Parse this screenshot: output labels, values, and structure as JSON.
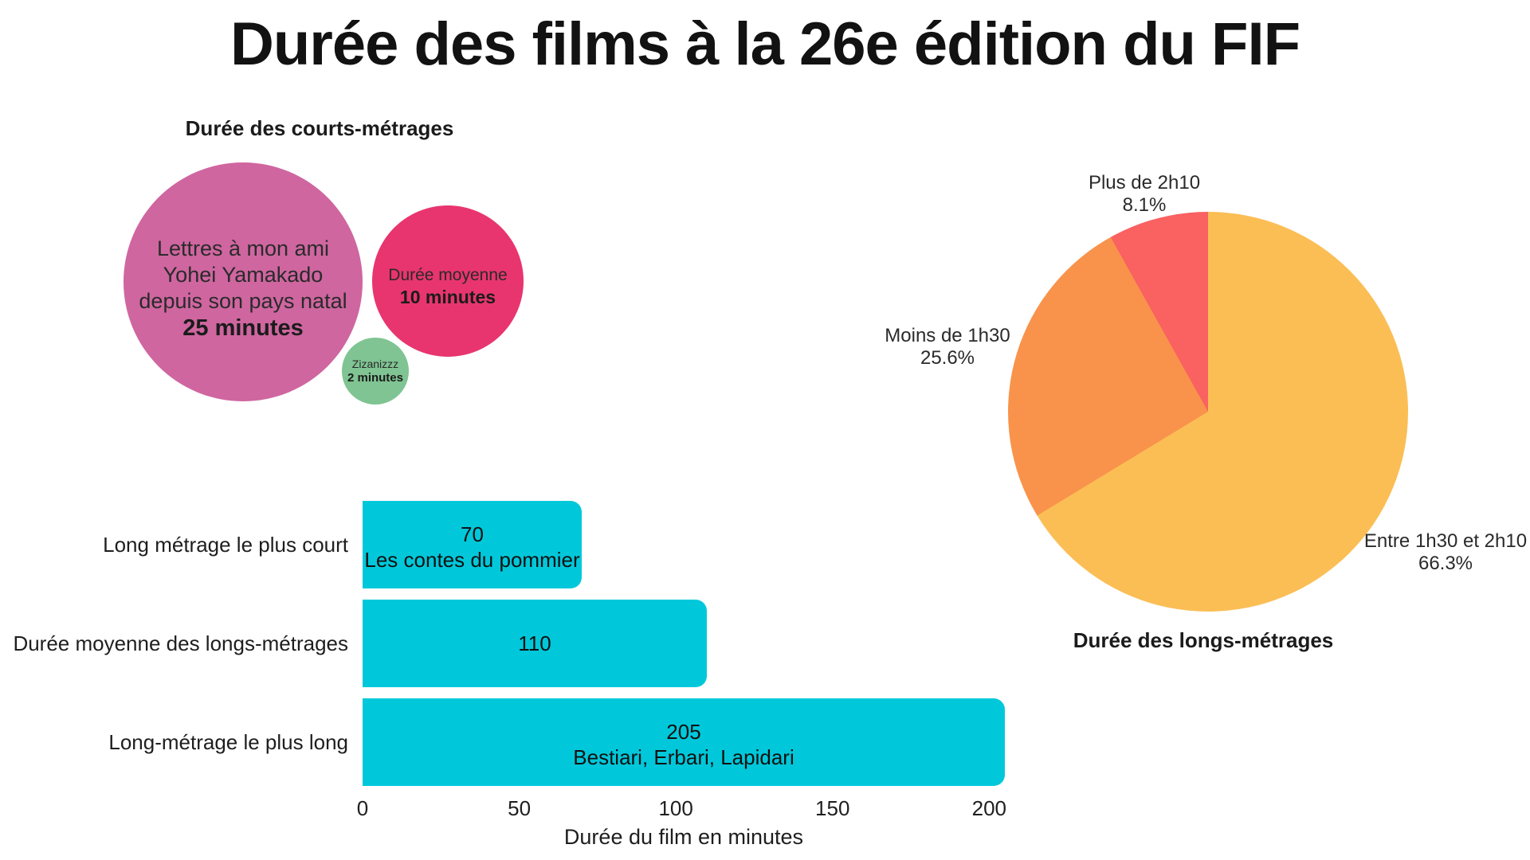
{
  "title": "Durée des films à la 26e édition du FIF",
  "colors": {
    "bubble_large": "#cf66a0",
    "bubble_medium": "#e8356f",
    "bubble_small": "#7fc492",
    "bar": "#00c8da",
    "pie_yellow": "#fbbe55",
    "pie_orange": "#f9934b",
    "pie_red": "#fa6161"
  },
  "chart_data": [
    {
      "id": "short-films-bubbles",
      "type": "bubble",
      "title": "Durée des courts-métrages",
      "unit": "minutes",
      "points": [
        {
          "label_lines": [
            "Lettres à mon ami",
            "Yohei Yamakado",
            "depuis son pays natal"
          ],
          "value_minutes": 25,
          "value_label": "25 minutes",
          "color": "#cf66a0"
        },
        {
          "label_lines": [
            "Durée moyenne"
          ],
          "value_minutes": 10,
          "value_label": "10 minutes",
          "color": "#e8356f"
        },
        {
          "label_lines": [
            "Zizanizzz"
          ],
          "value_minutes": 2,
          "value_label": "2 minutes",
          "color": "#7fc492"
        }
      ]
    },
    {
      "id": "feature-films-pie",
      "type": "pie",
      "title": "Durée des longs-métrages",
      "start_angle_deg": 0,
      "direction": "clockwise",
      "slices": [
        {
          "label": "Entre 1h30 et 2h10",
          "value_pct": 66.3,
          "pct_label": "66.3%",
          "color": "#fbbe55"
        },
        {
          "label": "Moins de 1h30",
          "value_pct": 25.6,
          "pct_label": "25.6%",
          "color": "#f9934b"
        },
        {
          "label": "Plus de 2h10",
          "value_pct": 8.1,
          "pct_label": "8.1%",
          "color": "#fa6161"
        }
      ]
    },
    {
      "id": "feature-films-bars",
      "type": "bar",
      "orientation": "horizontal",
      "bar_color": "#00c8da",
      "rows": [
        {
          "label": "Long métrage le plus court",
          "value": 70,
          "value_label": "70",
          "sublabel": "Les contes du pommier"
        },
        {
          "label": "Durée moyenne des longs-métrages",
          "value": 110,
          "value_label": "110",
          "sublabel": ""
        },
        {
          "label": "Long-métrage le plus long",
          "value": 205,
          "value_label": "205",
          "sublabel": "Bestiari, Erbari, Lapidari"
        }
      ],
      "x_ticks": [
        0,
        50,
        100,
        150,
        200
      ],
      "xlim": [
        0,
        205
      ],
      "xlabel": "Durée du film en minutes",
      "grid": false,
      "legend": "none"
    }
  ]
}
